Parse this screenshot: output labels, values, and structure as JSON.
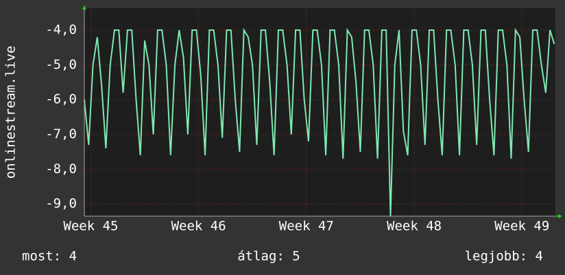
{
  "chart_data": {
    "type": "line",
    "y_label": "onlinestream.live",
    "xlim": [
      44.94,
      49.31
    ],
    "ylim": [
      -9.35,
      -3.37
    ],
    "xticks": [
      {
        "value": 45,
        "label": "Week 45"
      },
      {
        "value": 46,
        "label": "Week 46"
      },
      {
        "value": 47,
        "label": "Week 47"
      },
      {
        "value": 48,
        "label": "Week 48"
      },
      {
        "value": 49,
        "label": "Week 49"
      }
    ],
    "yticks": [
      {
        "value": -4,
        "label": "-4,0"
      },
      {
        "value": -5,
        "label": "-5,0"
      },
      {
        "value": -6,
        "label": "-6,0"
      },
      {
        "value": -7,
        "label": "-7,0"
      },
      {
        "value": -8,
        "label": "-8,0"
      },
      {
        "value": -9,
        "label": "-9,0"
      }
    ],
    "grid": true,
    "x": [
      44.94,
      44.98,
      45.02,
      45.06,
      45.1,
      45.14,
      45.18,
      45.22,
      45.26,
      45.3,
      45.34,
      45.38,
      45.42,
      45.46,
      45.5,
      45.54,
      45.58,
      45.62,
      45.66,
      45.7,
      45.74,
      45.78,
      45.82,
      45.86,
      45.9,
      45.94,
      45.98,
      46.02,
      46.06,
      46.1,
      46.14,
      46.18,
      46.22,
      46.26,
      46.3,
      46.34,
      46.38,
      46.42,
      46.46,
      46.5,
      46.54,
      46.58,
      46.62,
      46.66,
      46.7,
      46.74,
      46.78,
      46.82,
      46.86,
      46.9,
      46.94,
      46.98,
      47.02,
      47.06,
      47.1,
      47.14,
      47.18,
      47.22,
      47.26,
      47.3,
      47.34,
      47.38,
      47.42,
      47.46,
      47.5,
      47.54,
      47.58,
      47.62,
      47.66,
      47.7,
      47.74,
      47.78,
      47.82,
      47.86,
      47.9,
      47.94,
      47.98,
      48.02,
      48.06,
      48.1,
      48.14,
      48.18,
      48.22,
      48.26,
      48.3,
      48.34,
      48.38,
      48.42,
      48.46,
      48.5,
      48.54,
      48.58,
      48.62,
      48.66,
      48.7,
      48.74,
      48.78,
      48.82,
      48.86,
      48.9,
      48.94,
      48.98,
      49.02,
      49.06,
      49.1,
      49.14,
      49.18,
      49.22,
      49.26,
      49.3
    ],
    "series": [
      {
        "name": "onlinestream.live",
        "color": "#7ee8b2",
        "values": [
          -6.0,
          -7.3,
          -5.0,
          -4.2,
          -5.6,
          -7.4,
          -5.0,
          -4.0,
          -4.0,
          -5.8,
          -4.0,
          -4.0,
          -6.0,
          -7.6,
          -4.3,
          -5.0,
          -7.0,
          -4.0,
          -4.0,
          -5.0,
          -7.6,
          -5.0,
          -4.0,
          -4.8,
          -7.0,
          -4.0,
          -4.0,
          -5.3,
          -7.6,
          -4.0,
          -4.0,
          -5.0,
          -7.1,
          -4.0,
          -4.0,
          -6.0,
          -7.5,
          -4.0,
          -4.2,
          -5.0,
          -7.3,
          -4.0,
          -4.0,
          -5.5,
          -7.6,
          -4.0,
          -4.0,
          -5.0,
          -7.0,
          -4.0,
          -4.0,
          -6.0,
          -7.2,
          -4.0,
          -4.0,
          -5.0,
          -7.6,
          -4.0,
          -4.0,
          -5.0,
          -7.7,
          -4.0,
          -4.2,
          -5.5,
          -7.5,
          -4.0,
          -4.0,
          -5.0,
          -7.7,
          -4.0,
          -4.0,
          -9.35,
          -5.0,
          -4.0,
          -6.9,
          -7.6,
          -4.0,
          -4.0,
          -5.0,
          -7.3,
          -4.0,
          -4.0,
          -6.0,
          -7.6,
          -4.0,
          -4.0,
          -5.0,
          -7.6,
          -4.0,
          -4.0,
          -5.0,
          -7.3,
          -4.0,
          -4.0,
          -6.0,
          -7.6,
          -4.0,
          -4.0,
          -5.0,
          -7.7,
          -4.0,
          -4.2,
          -6.0,
          -7.5,
          -4.0,
          -4.0,
          -5.0,
          -5.8,
          -4.0,
          -4.4
        ]
      }
    ],
    "footer": [
      "most: 4",
      "átlag: 5",
      "legjobb: 4"
    ]
  }
}
